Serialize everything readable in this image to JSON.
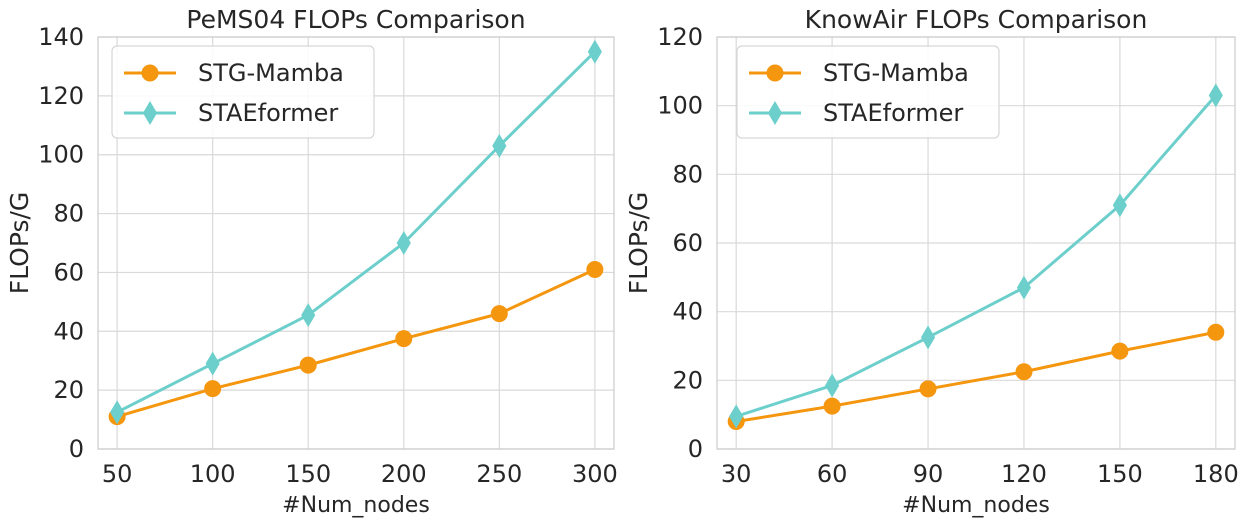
{
  "chart_data": [
    {
      "type": "line",
      "title": "PeMS04 FLOPs Comparison",
      "xlabel": "#Num_nodes",
      "ylabel": "FLOPs/G",
      "x": [
        50,
        100,
        150,
        200,
        250,
        300
      ],
      "xticks": [
        "50",
        "100",
        "150",
        "200",
        "250",
        "300"
      ],
      "yticks": [
        "0",
        "20",
        "40",
        "60",
        "80",
        "100",
        "120",
        "140"
      ],
      "xlim": [
        40,
        310
      ],
      "ylim": [
        0,
        140
      ],
      "grid": true,
      "legend_position": "top-left",
      "series": [
        {
          "name": "STG-Mamba",
          "color": "#f5960f",
          "marker": "circle",
          "values": [
            11,
            20.5,
            28.5,
            37.5,
            46,
            61
          ]
        },
        {
          "name": "STAEformer",
          "color": "#6dcfcb",
          "marker": "thin_diamond",
          "values": [
            12.5,
            29,
            45.5,
            70,
            103,
            135
          ]
        }
      ]
    },
    {
      "type": "line",
      "title": "KnowAir FLOPs Comparison",
      "xlabel": "#Num_nodes",
      "ylabel": "FLOPs/G",
      "x": [
        30,
        60,
        90,
        120,
        150,
        180
      ],
      "xticks": [
        "30",
        "60",
        "90",
        "120",
        "150",
        "180"
      ],
      "yticks": [
        "0",
        "20",
        "40",
        "60",
        "80",
        "100",
        "120"
      ],
      "xlim": [
        24,
        186
      ],
      "ylim": [
        0,
        120
      ],
      "grid": true,
      "legend_position": "top-left",
      "series": [
        {
          "name": "STG-Mamba",
          "color": "#f5960f",
          "marker": "circle",
          "values": [
            8,
            12.5,
            17.5,
            22.5,
            28.5,
            34
          ]
        },
        {
          "name": "STAEformer",
          "color": "#6dcfcb",
          "marker": "thin_diamond",
          "values": [
            9.5,
            18.5,
            32.5,
            47,
            71,
            103
          ]
        }
      ]
    }
  ]
}
